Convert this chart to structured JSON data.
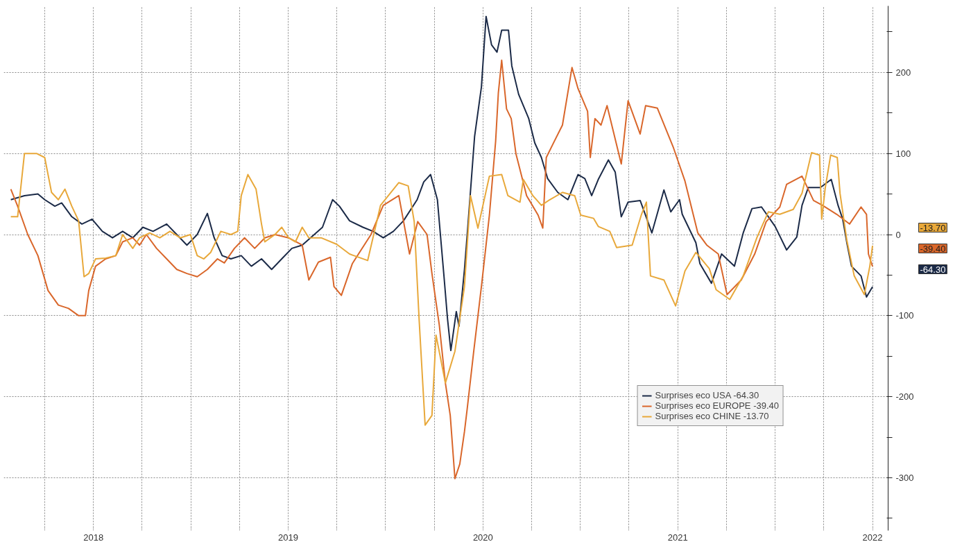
{
  "chart_data": {
    "type": "line",
    "xlim": [
      2018.04,
      2022.58
    ],
    "xticks": [
      {
        "value": 2018.25,
        "label": null
      },
      {
        "value": 2018.5,
        "label": "2018"
      },
      {
        "value": 2018.75,
        "label": null
      },
      {
        "value": 2019.0,
        "label": null
      },
      {
        "value": 2019.25,
        "label": null
      },
      {
        "value": 2019.5,
        "label": "2019"
      },
      {
        "value": 2019.75,
        "label": null
      },
      {
        "value": 2020.0,
        "label": null
      },
      {
        "value": 2020.25,
        "label": null
      },
      {
        "value": 2020.5,
        "label": "2020"
      },
      {
        "value": 2020.75,
        "label": null
      },
      {
        "value": 2021.0,
        "label": null
      },
      {
        "value": 2021.25,
        "label": null
      },
      {
        "value": 2021.5,
        "label": "2021"
      },
      {
        "value": 2021.75,
        "label": null
      },
      {
        "value": 2022.0,
        "label": null
      },
      {
        "value": 2022.25,
        "label": null
      },
      {
        "value": 2022.5,
        "label": "2022"
      }
    ],
    "ylim": [
      -365,
      282
    ],
    "yticks": [
      {
        "value": -350,
        "label": null
      },
      -300,
      {
        "value": -250,
        "label": null
      },
      -200,
      {
        "value": -150,
        "label": null
      },
      -100,
      {
        "value": -50,
        "label": null
      },
      0,
      {
        "value": 50,
        "label": null
      },
      100,
      {
        "value": 150,
        "label": null
      },
      200,
      {
        "value": 250,
        "label": null
      }
    ],
    "grid": true,
    "legend": "bottom right",
    "series": [
      {
        "name": "Surprises eco USA -64.30",
        "color": "#1b2a47",
        "x": [
          2018.076,
          2018.146,
          2018.215,
          2018.25,
          2018.302,
          2018.337,
          2018.389,
          2018.441,
          2018.493,
          2018.546,
          2018.598,
          2018.65,
          2018.702,
          2018.754,
          2018.806,
          2018.876,
          2018.928,
          2018.98,
          2019.033,
          2019.085,
          2019.12,
          2019.161,
          2019.206,
          2019.259,
          2019.311,
          2019.363,
          2019.415,
          2019.467,
          2019.519,
          2019.572,
          2019.676,
          2019.728,
          2019.763,
          2019.815,
          2019.884,
          2019.936,
          2019.988,
          2020.04,
          2020.092,
          2020.162,
          2020.196,
          2020.231,
          2020.266,
          2020.3,
          2020.318,
          2020.335,
          2020.363,
          2020.377,
          2020.405,
          2020.422,
          2020.457,
          2020.492,
          2020.516,
          2020.544,
          2020.572,
          2020.596,
          2020.631,
          2020.648,
          2020.683,
          2020.735,
          2020.766,
          2020.8,
          2020.832,
          2020.884,
          2020.936,
          2020.988,
          2021.023,
          2021.058,
          2021.092,
          2021.144,
          2021.179,
          2021.21,
          2021.245,
          2021.307,
          2021.342,
          2021.367,
          2021.429,
          2021.464,
          2021.509,
          2021.523,
          2021.593,
          2021.614,
          2021.673,
          2021.725,
          2021.791,
          2021.836,
          2021.881,
          2021.93,
          2022.0,
          2022.059,
          2022.111,
          2022.138,
          2022.17,
          2022.232,
          2022.288,
          2022.323,
          2022.347,
          2022.368,
          2022.392,
          2022.441,
          2022.469,
          2022.5
        ],
        "values": [
          43,
          48,
          50,
          43,
          35,
          39,
          22,
          13,
          19,
          4,
          -4,
          4,
          -4,
          9,
          4,
          13,
          0,
          -13,
          0,
          26,
          -4,
          -26,
          -30,
          -26,
          -39,
          -30,
          -43,
          -30,
          -17,
          -13,
          9,
          43,
          35,
          17,
          9,
          4,
          -4,
          4,
          17,
          43,
          65,
          74,
          43,
          -52,
          -104,
          -143,
          -95,
          -113,
          -43,
          9,
          121,
          182,
          269,
          234,
          225,
          252,
          252,
          208,
          173,
          143,
          113,
          95,
          69,
          52,
          43,
          74,
          69,
          48,
          68,
          92,
          77,
          22,
          40,
          42,
          19,
          2,
          55,
          28,
          43,
          25,
          -10,
          -36,
          -60,
          -24,
          -39,
          2,
          32,
          34,
          10,
          -19,
          -3,
          36,
          58,
          58,
          68,
          36,
          19,
          -10,
          -39,
          -51,
          -77,
          -64.3
        ]
      },
      {
        "name": "Surprises eco EUROPE -39.40",
        "color": "#d9662a",
        "x": [
          2018.076,
          2018.111,
          2018.163,
          2018.215,
          2018.267,
          2018.32,
          2018.372,
          2018.424,
          2018.459,
          2018.476,
          2018.511,
          2018.563,
          2018.615,
          2018.65,
          2018.702,
          2018.737,
          2018.772,
          2018.824,
          2018.876,
          2018.928,
          2018.98,
          2019.033,
          2019.085,
          2019.137,
          2019.172,
          2019.224,
          2019.276,
          2019.328,
          2019.38,
          2019.432,
          2019.502,
          2019.572,
          2019.606,
          2019.655,
          2019.717,
          2019.735,
          2019.773,
          2019.829,
          2019.925,
          2019.988,
          2020.068,
          2020.123,
          2020.165,
          2020.213,
          2020.238,
          2020.276,
          2020.307,
          2020.332,
          2020.356,
          2020.381,
          2020.405,
          2020.419,
          2020.453,
          2020.492,
          2020.533,
          2020.565,
          2020.579,
          2020.596,
          2020.621,
          2020.645,
          2020.669,
          2020.724,
          2020.783,
          2020.807,
          2020.825,
          2020.86,
          2020.908,
          2020.957,
          2020.988,
          2021.037,
          2021.051,
          2021.075,
          2021.106,
          2021.137,
          2021.21,
          2021.245,
          2021.307,
          2021.335,
          2021.395,
          2021.478,
          2021.537,
          2021.603,
          2021.649,
          2021.708,
          2021.753,
          2021.826,
          2021.895,
          2021.954,
          2022.024,
          2022.059,
          2022.138,
          2022.197,
          2022.243,
          2022.316,
          2022.382,
          2022.441,
          2022.469,
          2022.479,
          2022.5
        ],
        "values": [
          56,
          35,
          0,
          -26,
          -69,
          -87,
          -91,
          -100,
          -100,
          -69,
          -39,
          -30,
          -26,
          -9,
          -4,
          -13,
          0,
          -17,
          -30,
          -43,
          -48,
          -52,
          -43,
          -30,
          -35,
          -17,
          -4,
          -17,
          -4,
          0,
          -4,
          -13,
          -56,
          -34,
          -28,
          -64,
          -75,
          -36,
          0,
          36,
          48,
          -24,
          16,
          0,
          -48,
          -112,
          -183,
          -223,
          -301,
          -283,
          -243,
          -215,
          -143,
          -64,
          24,
          115,
          175,
          215,
          155,
          143,
          100,
          48,
          24,
          8,
          95,
          112,
          135,
          206,
          180,
          152,
          95,
          143,
          135,
          159,
          87,
          165,
          124,
          159,
          156,
          107,
          66,
          2,
          -13,
          -24,
          -74,
          -56,
          -24,
          16,
          34,
          62,
          72,
          42,
          36,
          25,
          13,
          34,
          25,
          -24,
          -39.4
        ]
      },
      {
        "name": "Surprises eco CHINE -13.70",
        "color": "#e8a83a",
        "x": [
          2018.076,
          2018.111,
          2018.146,
          2018.208,
          2018.25,
          2018.285,
          2018.32,
          2018.354,
          2018.389,
          2018.424,
          2018.452,
          2018.476,
          2018.511,
          2018.563,
          2018.615,
          2018.65,
          2018.702,
          2018.737,
          2018.789,
          2018.841,
          2018.893,
          2018.946,
          2018.998,
          2019.033,
          2019.067,
          2019.102,
          2019.154,
          2019.206,
          2019.241,
          2019.259,
          2019.293,
          2019.335,
          2019.363,
          2019.38,
          2019.432,
          2019.467,
          2019.502,
          2019.537,
          2019.572,
          2019.606,
          2019.669,
          2019.749,
          2019.815,
          2019.908,
          2019.974,
          2020.068,
          2020.116,
          2020.147,
          2020.172,
          2020.203,
          2020.238,
          2020.259,
          2020.307,
          2020.356,
          2020.405,
          2020.436,
          2020.474,
          2020.533,
          2020.596,
          2020.628,
          2020.69,
          2020.707,
          2020.756,
          2020.8,
          2020.843,
          2020.908,
          2020.971,
          2021.002,
          2021.068,
          2021.092,
          2021.151,
          2021.186,
          2021.266,
          2021.314,
          2021.339,
          2021.36,
          2021.429,
          2021.489,
          2021.537,
          2021.593,
          2021.662,
          2021.697,
          2021.767,
          2021.836,
          2021.906,
          2021.965,
          2022.024,
          2022.093,
          2022.138,
          2022.187,
          2022.228,
          2022.239,
          2022.257,
          2022.285,
          2022.319,
          2022.333,
          2022.368,
          2022.406,
          2022.458,
          2022.486,
          2022.5
        ],
        "values": [
          22,
          22,
          100,
          100,
          95,
          52,
          43,
          56,
          35,
          17,
          -52,
          -48,
          -30,
          -29,
          -26,
          0,
          -17,
          -4,
          2,
          -4,
          4,
          -4,
          0,
          -26,
          -30,
          -22,
          4,
          0,
          4,
          48,
          74,
          56,
          13,
          -9,
          0,
          9,
          -4,
          -9,
          9,
          -4,
          -4,
          -12,
          -24,
          -32,
          36,
          64,
          60,
          16,
          -104,
          -235,
          -223,
          -124,
          -183,
          -144,
          -64,
          48,
          8,
          72,
          74,
          48,
          40,
          68,
          48,
          36,
          43,
          52,
          48,
          24,
          20,
          10,
          4,
          -16,
          -13,
          25,
          40,
          -51,
          -56,
          -88,
          -45,
          -22,
          -42,
          -68,
          -80,
          -51,
          -4,
          28,
          25,
          31,
          51,
          101,
          98,
          19,
          57,
          98,
          95,
          51,
          -7,
          -51,
          -74,
          -39,
          -13.7
        ]
      }
    ],
    "annotations": [
      "-13.70",
      "-39.40",
      "-64.30"
    ]
  }
}
